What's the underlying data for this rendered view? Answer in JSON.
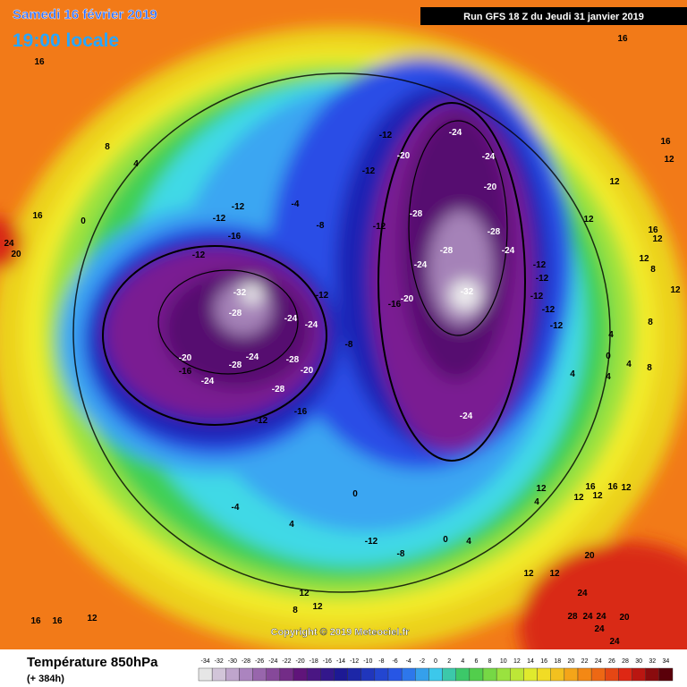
{
  "header": {
    "date": "Samedi 16 février 2019",
    "time": "19:00 locale",
    "run": "Run GFS 18 Z du Jeudi 31 janvier 2019"
  },
  "copyright": "Copyright © 2019 Meteociel.fr",
  "footer": {
    "title": "Température 850hPa",
    "lead": "(+ 384h)"
  },
  "scale": [
    -34,
    -32,
    -30,
    -28,
    -26,
    -24,
    -22,
    -20,
    -18,
    -16,
    -14,
    -12,
    -10,
    -8,
    -6,
    -4,
    -2,
    0,
    2,
    4,
    6,
    8,
    10,
    12,
    14,
    16,
    18,
    20,
    22,
    24,
    26,
    28,
    30,
    32,
    34
  ],
  "map_labels": [
    16,
    8,
    4,
    16,
    24,
    20,
    0,
    -12,
    -12,
    -16,
    -12,
    -32,
    -28,
    -24,
    -24,
    -20,
    -16,
    -28,
    -24,
    -28,
    -20,
    -24,
    -28,
    -16,
    -12,
    -12,
    -8,
    -12,
    -12,
    -20,
    -24,
    -24,
    -20,
    -28,
    -28,
    -28,
    -32,
    -24,
    -24,
    -20,
    -16,
    -12,
    -12,
    -12,
    -12,
    -12,
    -24,
    -8,
    -12,
    -4,
    -12,
    -8,
    -4,
    4,
    0,
    12,
    12,
    8,
    16,
    16,
    12,
    20,
    12,
    24,
    28,
    24,
    24,
    20,
    24,
    24,
    16,
    16,
    12,
    12,
    12,
    16,
    16,
    16,
    12,
    12,
    12,
    16,
    12,
    12,
    8,
    12,
    8,
    4,
    4,
    8,
    0,
    4,
    4,
    12,
    4,
    12,
    4,
    0
  ]
}
